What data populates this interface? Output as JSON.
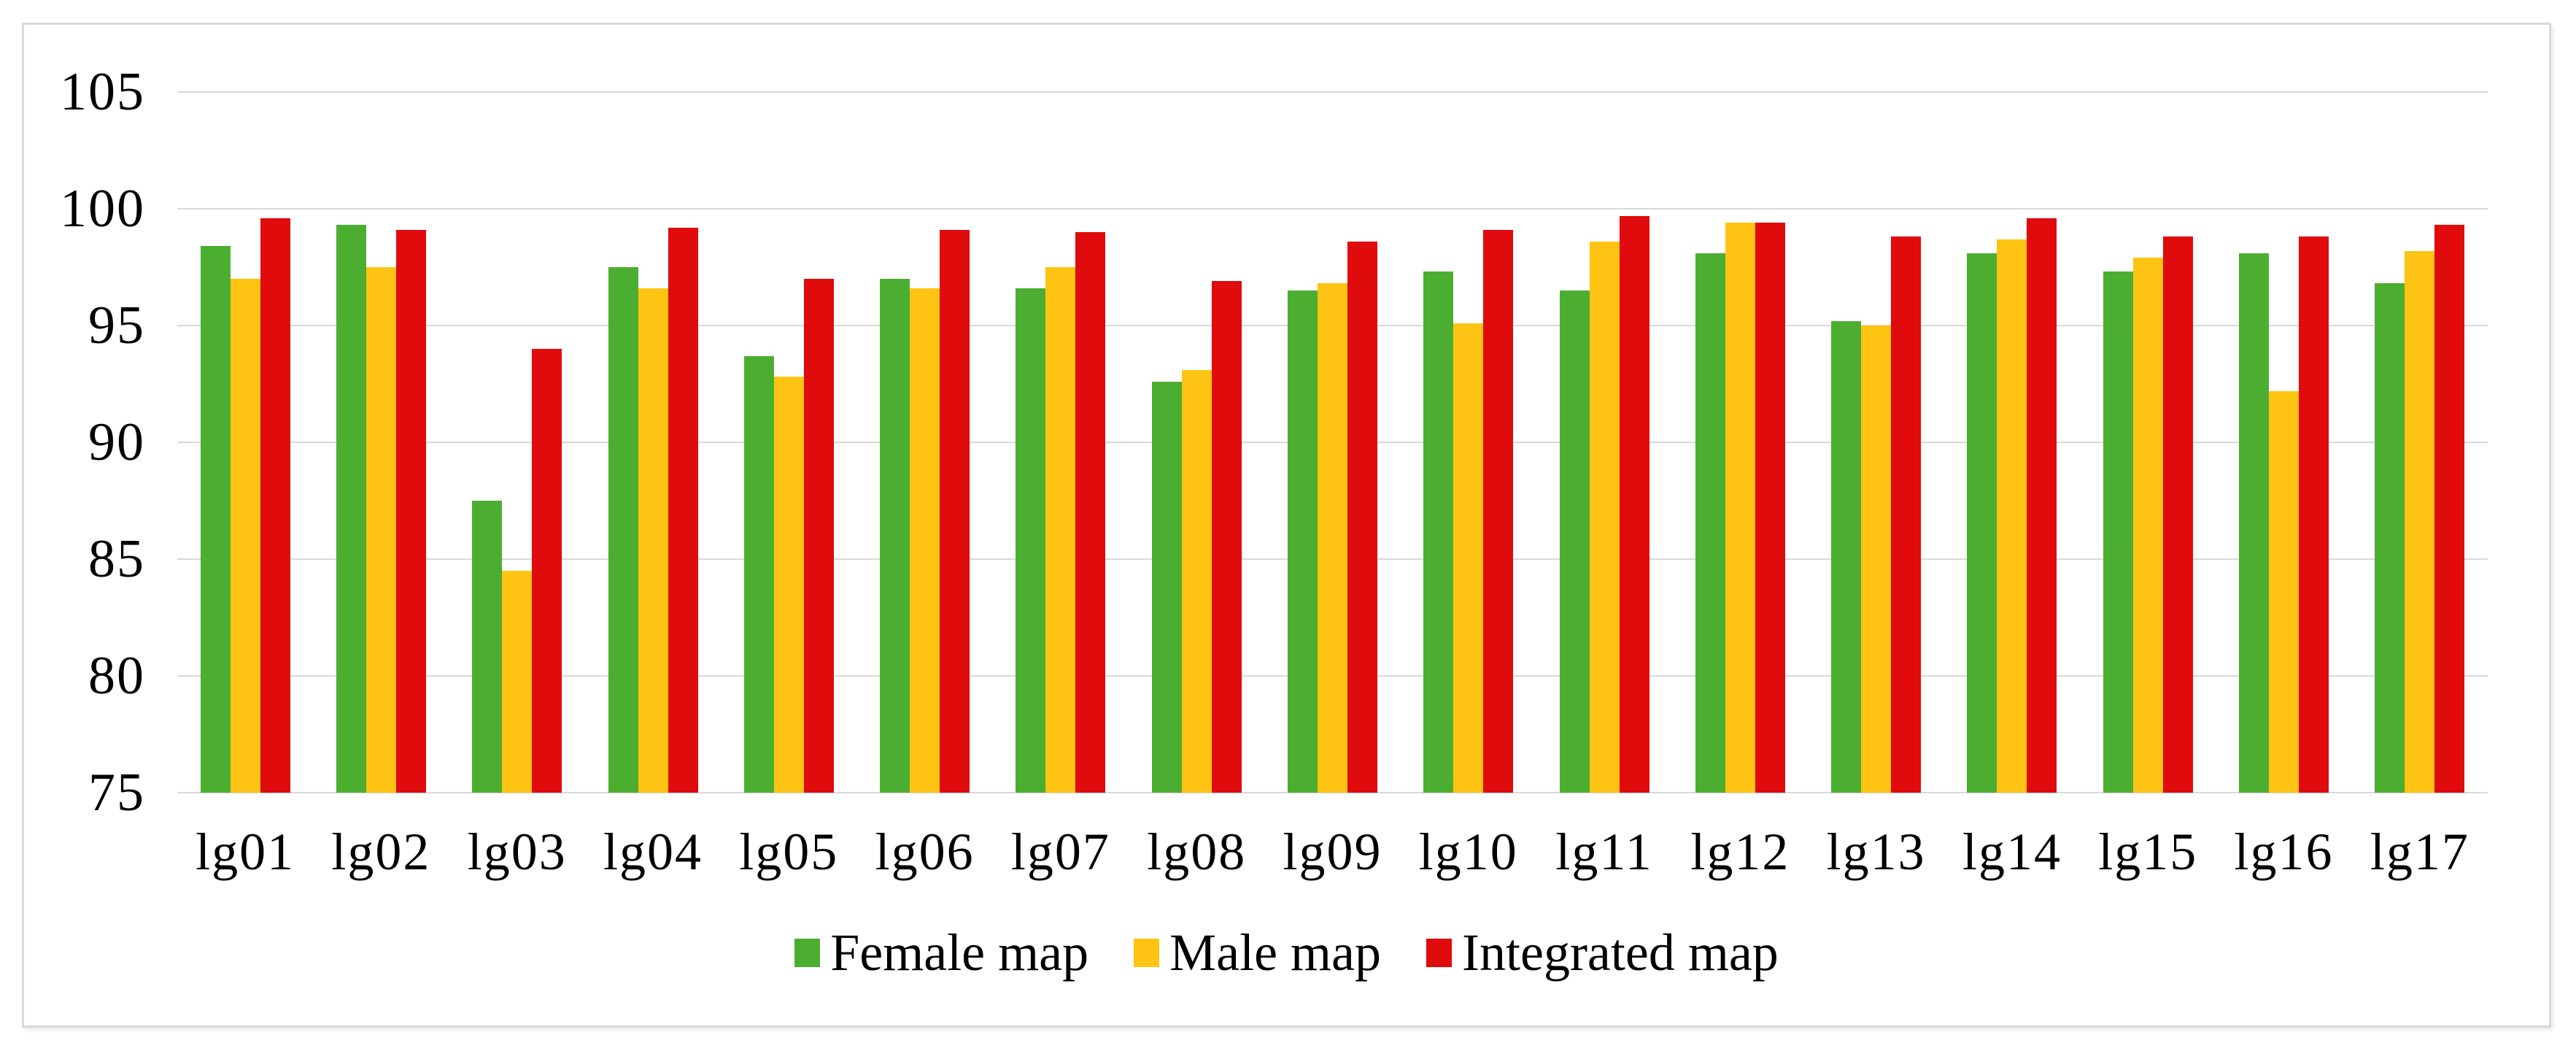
{
  "figure": {
    "background_color": "#FFFFFF",
    "frame_border_color": "#D9D9D9",
    "gridline_color": "#D9D9D9",
    "text_color": "#000000"
  },
  "chart_data": {
    "type": "bar",
    "title": "",
    "xlabel": "",
    "ylabel": "",
    "categories": [
      "lg01",
      "lg02",
      "lg03",
      "lg04",
      "lg05",
      "lg06",
      "lg07",
      "lg08",
      "lg09",
      "lg10",
      "lg11",
      "lg12",
      "lg13",
      "lg14",
      "lg15",
      "lg16",
      "lg17"
    ],
    "series": [
      {
        "name": "Female map",
        "color": "#4CAE31",
        "values": [
          98.4,
          99.3,
          87.5,
          97.5,
          93.7,
          97.0,
          96.6,
          92.6,
          96.5,
          97.3,
          96.5,
          98.1,
          95.2,
          98.1,
          97.3,
          98.1,
          96.8
        ]
      },
      {
        "name": "Male map",
        "color": "#FFC313",
        "values": [
          97.0,
          97.5,
          84.5,
          96.6,
          92.8,
          96.6,
          97.5,
          93.1,
          96.8,
          95.1,
          98.6,
          99.4,
          95.0,
          98.7,
          97.9,
          92.2,
          98.2
        ]
      },
      {
        "name": "Integrated map",
        "color": "#DF0B0C",
        "values": [
          99.6,
          99.1,
          94.0,
          99.2,
          97.0,
          99.1,
          99.0,
          96.9,
          98.6,
          99.1,
          99.7,
          99.4,
          98.8,
          99.6,
          98.8,
          98.8,
          99.3
        ]
      }
    ],
    "ylim": [
      75,
      105
    ],
    "yticks": [
      75,
      80,
      85,
      90,
      95,
      100,
      105
    ],
    "grid": true,
    "legend_position": "bottom-center"
  }
}
